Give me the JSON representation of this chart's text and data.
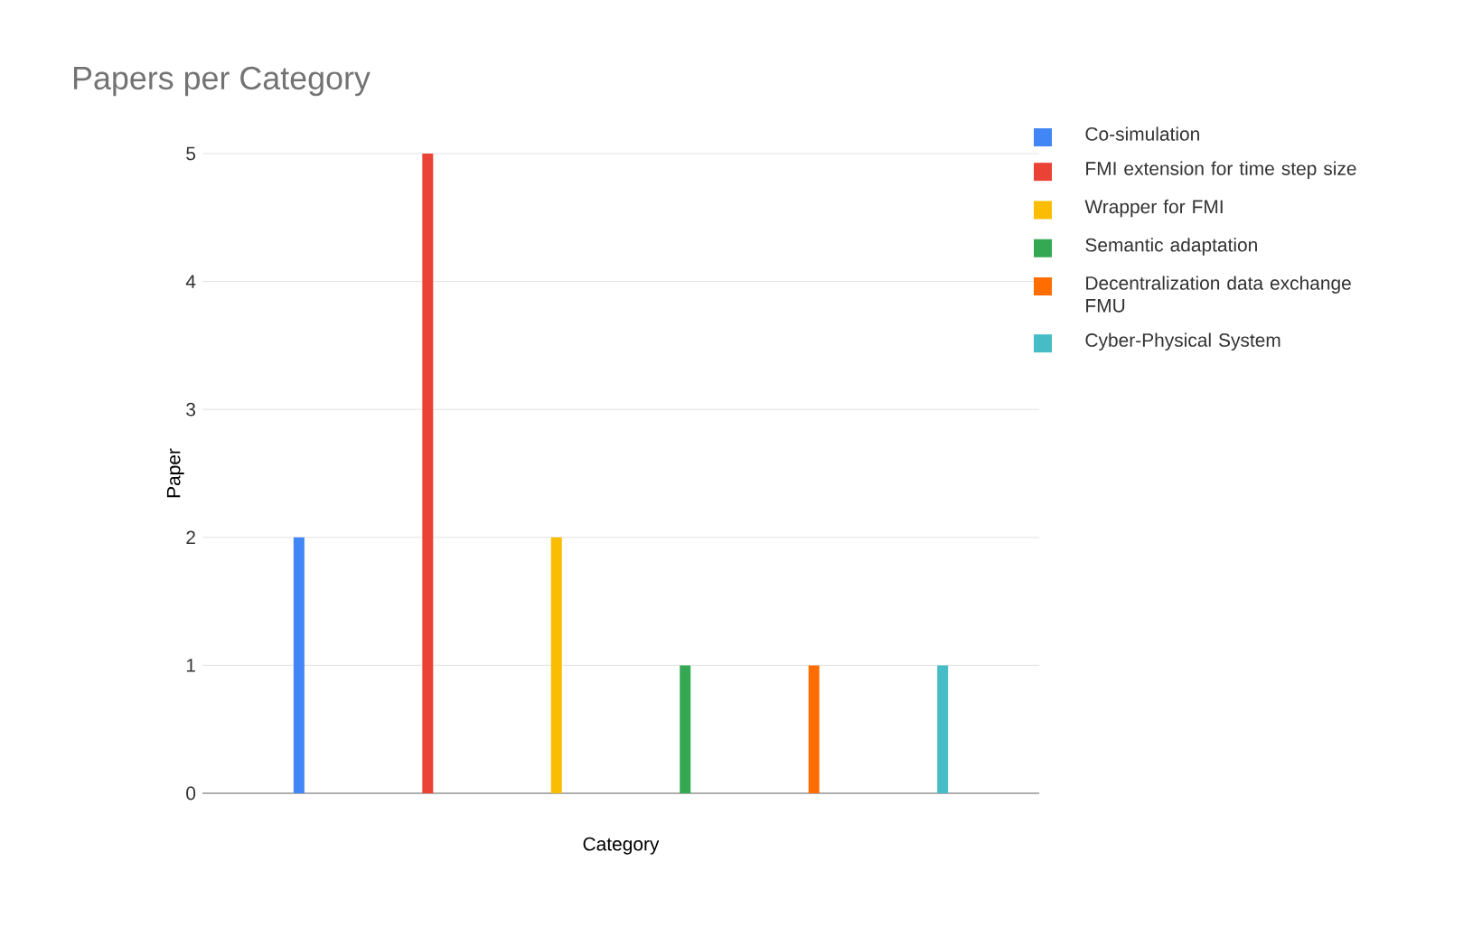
{
  "chart_data": {
    "type": "bar",
    "title": "Papers per Category",
    "xlabel": "Category",
    "ylabel": "Paper",
    "categories": [
      null
    ],
    "series": [
      {
        "name": "Co-simulation",
        "color": "#4285f4",
        "values": [
          2
        ]
      },
      {
        "name": "FMI extension for time step size",
        "color": "#ea4335",
        "values": [
          5
        ]
      },
      {
        "name": "Wrapper for FMI",
        "color": "#fbbc04",
        "values": [
          2
        ]
      },
      {
        "name": "Semantic adaptation",
        "color": "#34a853",
        "values": [
          1
        ]
      },
      {
        "name": "Decentralization data exchange FMU",
        "color": "#ff6d01",
        "values": [
          1
        ]
      },
      {
        "name": "Cyber-Physical System",
        "color": "#46bdc6",
        "values": [
          1
        ]
      }
    ],
    "ylim": [
      0,
      5
    ],
    "yticks": [
      0,
      1,
      2,
      3,
      4,
      5
    ],
    "grid": "y",
    "legend": "right"
  }
}
